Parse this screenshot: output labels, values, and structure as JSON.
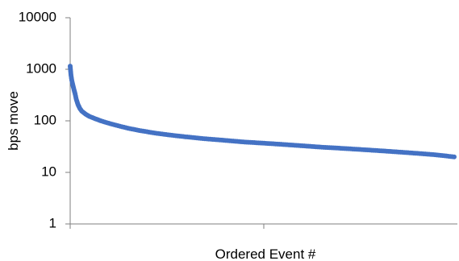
{
  "chart_data": {
    "type": "scatter",
    "title": "",
    "xlabel": "Ordered Event #",
    "ylabel": "bps move",
    "yscale": "log",
    "ylim": [
      1,
      10000
    ],
    "y_ticks": [
      "10000",
      "1000",
      "100",
      "10",
      "1"
    ],
    "grid": false,
    "legend": "none",
    "marker_color": "#4472C4",
    "x_axis_tick_marks": 2,
    "series": [
      {
        "points": [
          [
            0,
            1150
          ],
          [
            0.002,
            780
          ],
          [
            0.004,
            620
          ],
          [
            0.006,
            530
          ],
          [
            0.008,
            460
          ],
          [
            0.01,
            400
          ],
          [
            0.013,
            330
          ],
          [
            0.016,
            260
          ],
          [
            0.02,
            210
          ],
          [
            0.025,
            175
          ],
          [
            0.03,
            155
          ],
          [
            0.04,
            135
          ],
          [
            0.05,
            122
          ],
          [
            0.065,
            110
          ],
          [
            0.08,
            100
          ],
          [
            0.1,
            90
          ],
          [
            0.12,
            82
          ],
          [
            0.15,
            72
          ],
          [
            0.18,
            65
          ],
          [
            0.22,
            58
          ],
          [
            0.26,
            53
          ],
          [
            0.3,
            49
          ],
          [
            0.35,
            45
          ],
          [
            0.4,
            42
          ],
          [
            0.45,
            39
          ],
          [
            0.5,
            37
          ],
          [
            0.55,
            35
          ],
          [
            0.6,
            33
          ],
          [
            0.65,
            31
          ],
          [
            0.7,
            29.5
          ],
          [
            0.75,
            28
          ],
          [
            0.8,
            26.5
          ],
          [
            0.85,
            25
          ],
          [
            0.9,
            23.5
          ],
          [
            0.95,
            22
          ],
          [
            1.0,
            20
          ]
        ]
      }
    ]
  }
}
